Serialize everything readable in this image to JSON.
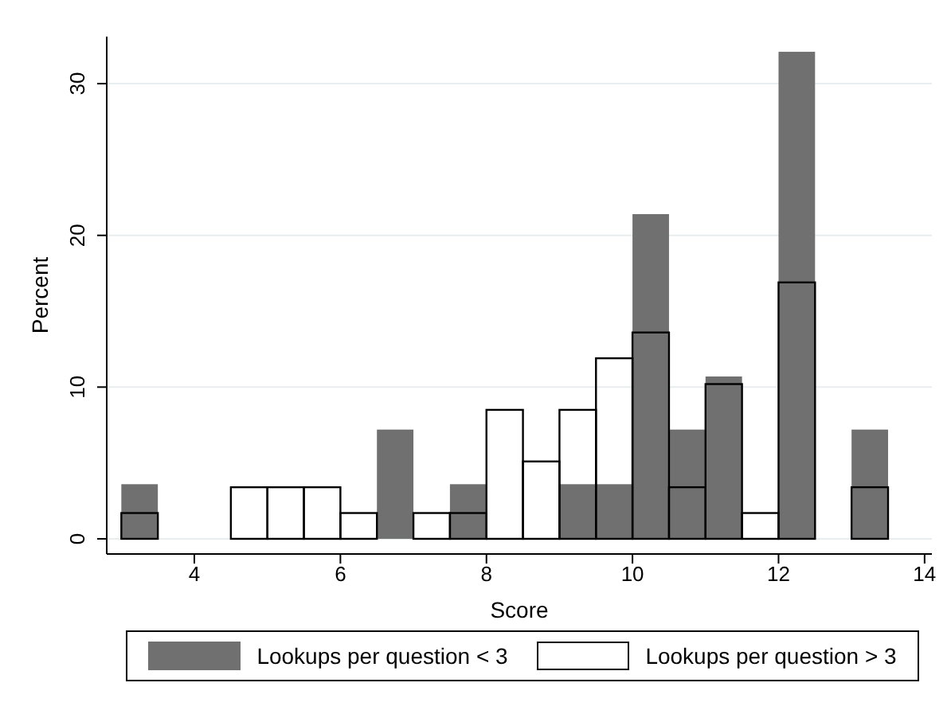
{
  "chart_data": {
    "type": "histogram",
    "xlabel": "Score",
    "ylabel": "Percent",
    "bins": [
      3,
      3.5,
      4,
      4.5,
      5,
      5.5,
      6,
      6.5,
      7,
      7.5,
      8,
      8.5,
      9,
      9.5,
      10,
      10.5,
      11,
      11.5,
      12,
      12.5,
      13,
      13.5
    ],
    "series": [
      {
        "name": "Lookups per question < 3",
        "color": "#707070",
        "values": [
          3.6,
          0,
          0,
          0,
          0,
          0,
          0,
          7.2,
          0,
          3.6,
          0,
          0,
          3.6,
          3.6,
          21.4,
          7.2,
          10.7,
          0,
          32.1,
          0,
          7.2
        ]
      },
      {
        "name": "Lookups per question > 3",
        "color": "#000000",
        "values": [
          1.7,
          0,
          0,
          3.4,
          3.4,
          3.4,
          1.7,
          0,
          1.7,
          1.7,
          8.5,
          5.1,
          8.5,
          11.9,
          13.6,
          3.4,
          10.2,
          1.7,
          16.9,
          0,
          3.4
        ]
      }
    ],
    "xlim": [
      2.8,
      14.1
    ],
    "xticks": [
      4,
      6,
      8,
      10,
      12,
      14
    ],
    "ylim": [
      -1,
      33.1
    ],
    "yticks": [
      0,
      10,
      20,
      30
    ],
    "grid": "y",
    "legend": "bottom"
  }
}
